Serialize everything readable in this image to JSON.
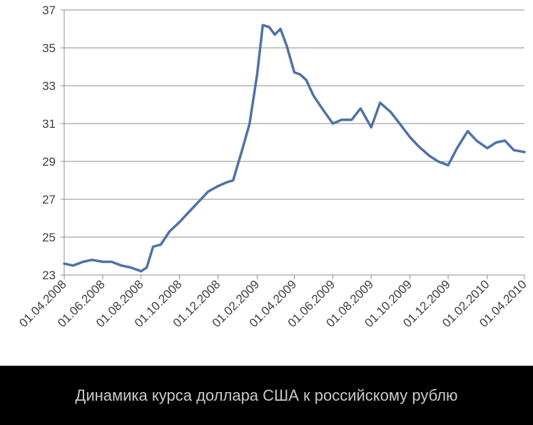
{
  "chart_data": {
    "type": "line",
    "title": "",
    "xlabel": "",
    "ylabel": "",
    "ylim": [
      23,
      37
    ],
    "yticks": [
      "23",
      "25",
      "27",
      "29",
      "31",
      "33",
      "35",
      "37"
    ],
    "xticks": [
      "01.04.2008",
      "01.06.2008",
      "01.08.2008",
      "01.10.2008",
      "01.12.2008",
      "01.02.2009",
      "01.04.2009",
      "01.06.2009",
      "01.08.2009",
      "01.10.2009",
      "01.12.2009",
      "01.02.2010",
      "01.04.2010"
    ],
    "grid": true,
    "legend": "none",
    "series": [
      {
        "color": "#4f72a6",
        "x": [
          "01.04.2008",
          "15.04.2008",
          "01.05.2008",
          "15.05.2008",
          "01.06.2008",
          "15.06.2008",
          "01.07.2008",
          "15.07.2008",
          "01.08.2008",
          "10.08.2008",
          "20.08.2008",
          "01.09.2008",
          "15.09.2008",
          "01.10.2008",
          "15.10.2008",
          "01.11.2008",
          "15.11.2008",
          "01.12.2008",
          "15.12.2008",
          "25.12.2008",
          "01.01.2009",
          "10.01.2009",
          "20.01.2009",
          "01.02.2009",
          "10.02.2009",
          "20.02.2009",
          "01.03.2009",
          "10.03.2009",
          "20.03.2009",
          "01.04.2009",
          "10.04.2009",
          "20.04.2009",
          "01.05.2009",
          "15.05.2009",
          "01.06.2009",
          "15.06.2009",
          "01.07.2009",
          "15.07.2009",
          "01.08.2009",
          "15.08.2009",
          "01.09.2009",
          "15.09.2009",
          "01.10.2009",
          "15.10.2009",
          "01.11.2009",
          "15.11.2009",
          "01.12.2009",
          "15.12.2009",
          "01.01.2010",
          "15.01.2010",
          "01.02.2010",
          "15.02.2010",
          "01.03.2010",
          "15.03.2010",
          "01.04.2010"
        ],
        "values": [
          23.6,
          23.5,
          23.7,
          23.8,
          23.7,
          23.7,
          23.5,
          23.4,
          23.2,
          23.4,
          24.5,
          24.6,
          25.3,
          25.8,
          26.3,
          26.9,
          27.4,
          27.7,
          27.9,
          28.0,
          28.8,
          29.8,
          31.0,
          33.6,
          36.2,
          36.1,
          35.7,
          36.0,
          35.1,
          33.7,
          33.6,
          33.3,
          32.5,
          31.8,
          31.0,
          31.2,
          31.2,
          31.8,
          30.8,
          32.1,
          31.6,
          31.0,
          30.3,
          29.8,
          29.3,
          29.0,
          28.8,
          29.7,
          30.6,
          30.1,
          29.7,
          30.0,
          30.1,
          29.6,
          29.5
        ]
      }
    ]
  },
  "caption": "Динамика курса доллара США к российскому рублю"
}
